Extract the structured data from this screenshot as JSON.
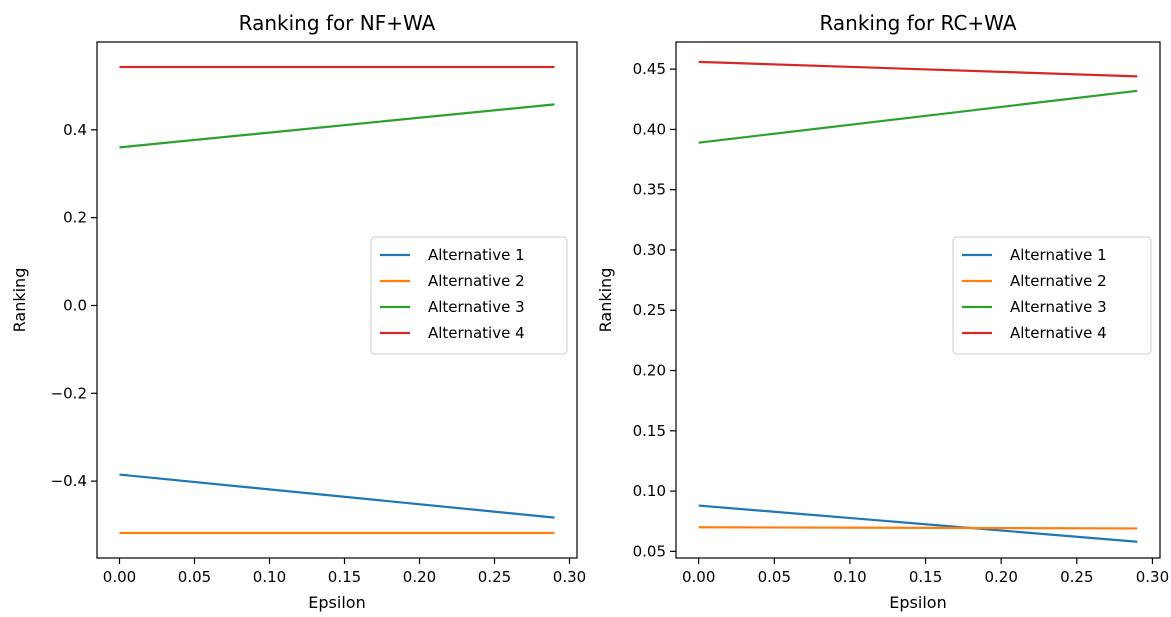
{
  "chart_data": [
    {
      "type": "line",
      "title": "Ranking for NF+WA",
      "xlabel": "Epsilon",
      "ylabel": "Ranking",
      "xlim": [
        -0.015,
        0.305
      ],
      "ylim": [
        -0.575,
        0.6
      ],
      "xticks": [
        0.0,
        0.05,
        0.1,
        0.15,
        0.2,
        0.25,
        0.3
      ],
      "xtick_labels": [
        "0.00",
        "0.05",
        "0.10",
        "0.15",
        "0.20",
        "0.25",
        "0.30"
      ],
      "yticks": [
        -0.4,
        -0.2,
        0.0,
        0.2,
        0.4
      ],
      "ytick_labels": [
        "−0.4",
        "−0.2",
        "0.0",
        "0.2",
        "0.4"
      ],
      "grid": false,
      "legend_position": "center-right",
      "series": [
        {
          "name": "Alternative 1",
          "color": "#1f77b4",
          "x": [
            0.0,
            0.29
          ],
          "y": [
            -0.385,
            -0.483
          ]
        },
        {
          "name": "Alternative 2",
          "color": "#ff7f0e",
          "x": [
            0.0,
            0.29
          ],
          "y": [
            -0.518,
            -0.518
          ]
        },
        {
          "name": "Alternative 3",
          "color": "#2ca02c",
          "x": [
            0.0,
            0.29
          ],
          "y": [
            0.36,
            0.458
          ]
        },
        {
          "name": "Alternative 4",
          "color": "#d62728",
          "x": [
            0.0,
            0.29
          ],
          "y": [
            0.543,
            0.543
          ]
        }
      ]
    },
    {
      "type": "line",
      "title": "Ranking for RC+WA",
      "xlabel": "Epsilon",
      "ylabel": "Ranking",
      "xlim": [
        -0.015,
        0.305
      ],
      "ylim": [
        0.0445,
        0.4725
      ],
      "xticks": [
        0.0,
        0.05,
        0.1,
        0.15,
        0.2,
        0.25,
        0.3
      ],
      "xtick_labels": [
        "0.00",
        "0.05",
        "0.10",
        "0.15",
        "0.20",
        "0.25",
        "0.30"
      ],
      "yticks": [
        0.05,
        0.1,
        0.15,
        0.2,
        0.25,
        0.3,
        0.35,
        0.4,
        0.45
      ],
      "ytick_labels": [
        "0.05",
        "0.10",
        "0.15",
        "0.20",
        "0.25",
        "0.30",
        "0.35",
        "0.40",
        "0.45"
      ],
      "grid": false,
      "legend_position": "center-right",
      "series": [
        {
          "name": "Alternative 1",
          "color": "#1f77b4",
          "x": [
            0.0,
            0.29
          ],
          "y": [
            0.088,
            0.058
          ]
        },
        {
          "name": "Alternative 2",
          "color": "#ff7f0e",
          "x": [
            0.0,
            0.29
          ],
          "y": [
            0.07,
            0.069
          ]
        },
        {
          "name": "Alternative 3",
          "color": "#2ca02c",
          "x": [
            0.0,
            0.29
          ],
          "y": [
            0.389,
            0.432
          ]
        },
        {
          "name": "Alternative 4",
          "color": "#d62728",
          "x": [
            0.0,
            0.29
          ],
          "y": [
            0.456,
            0.444
          ]
        }
      ]
    }
  ]
}
